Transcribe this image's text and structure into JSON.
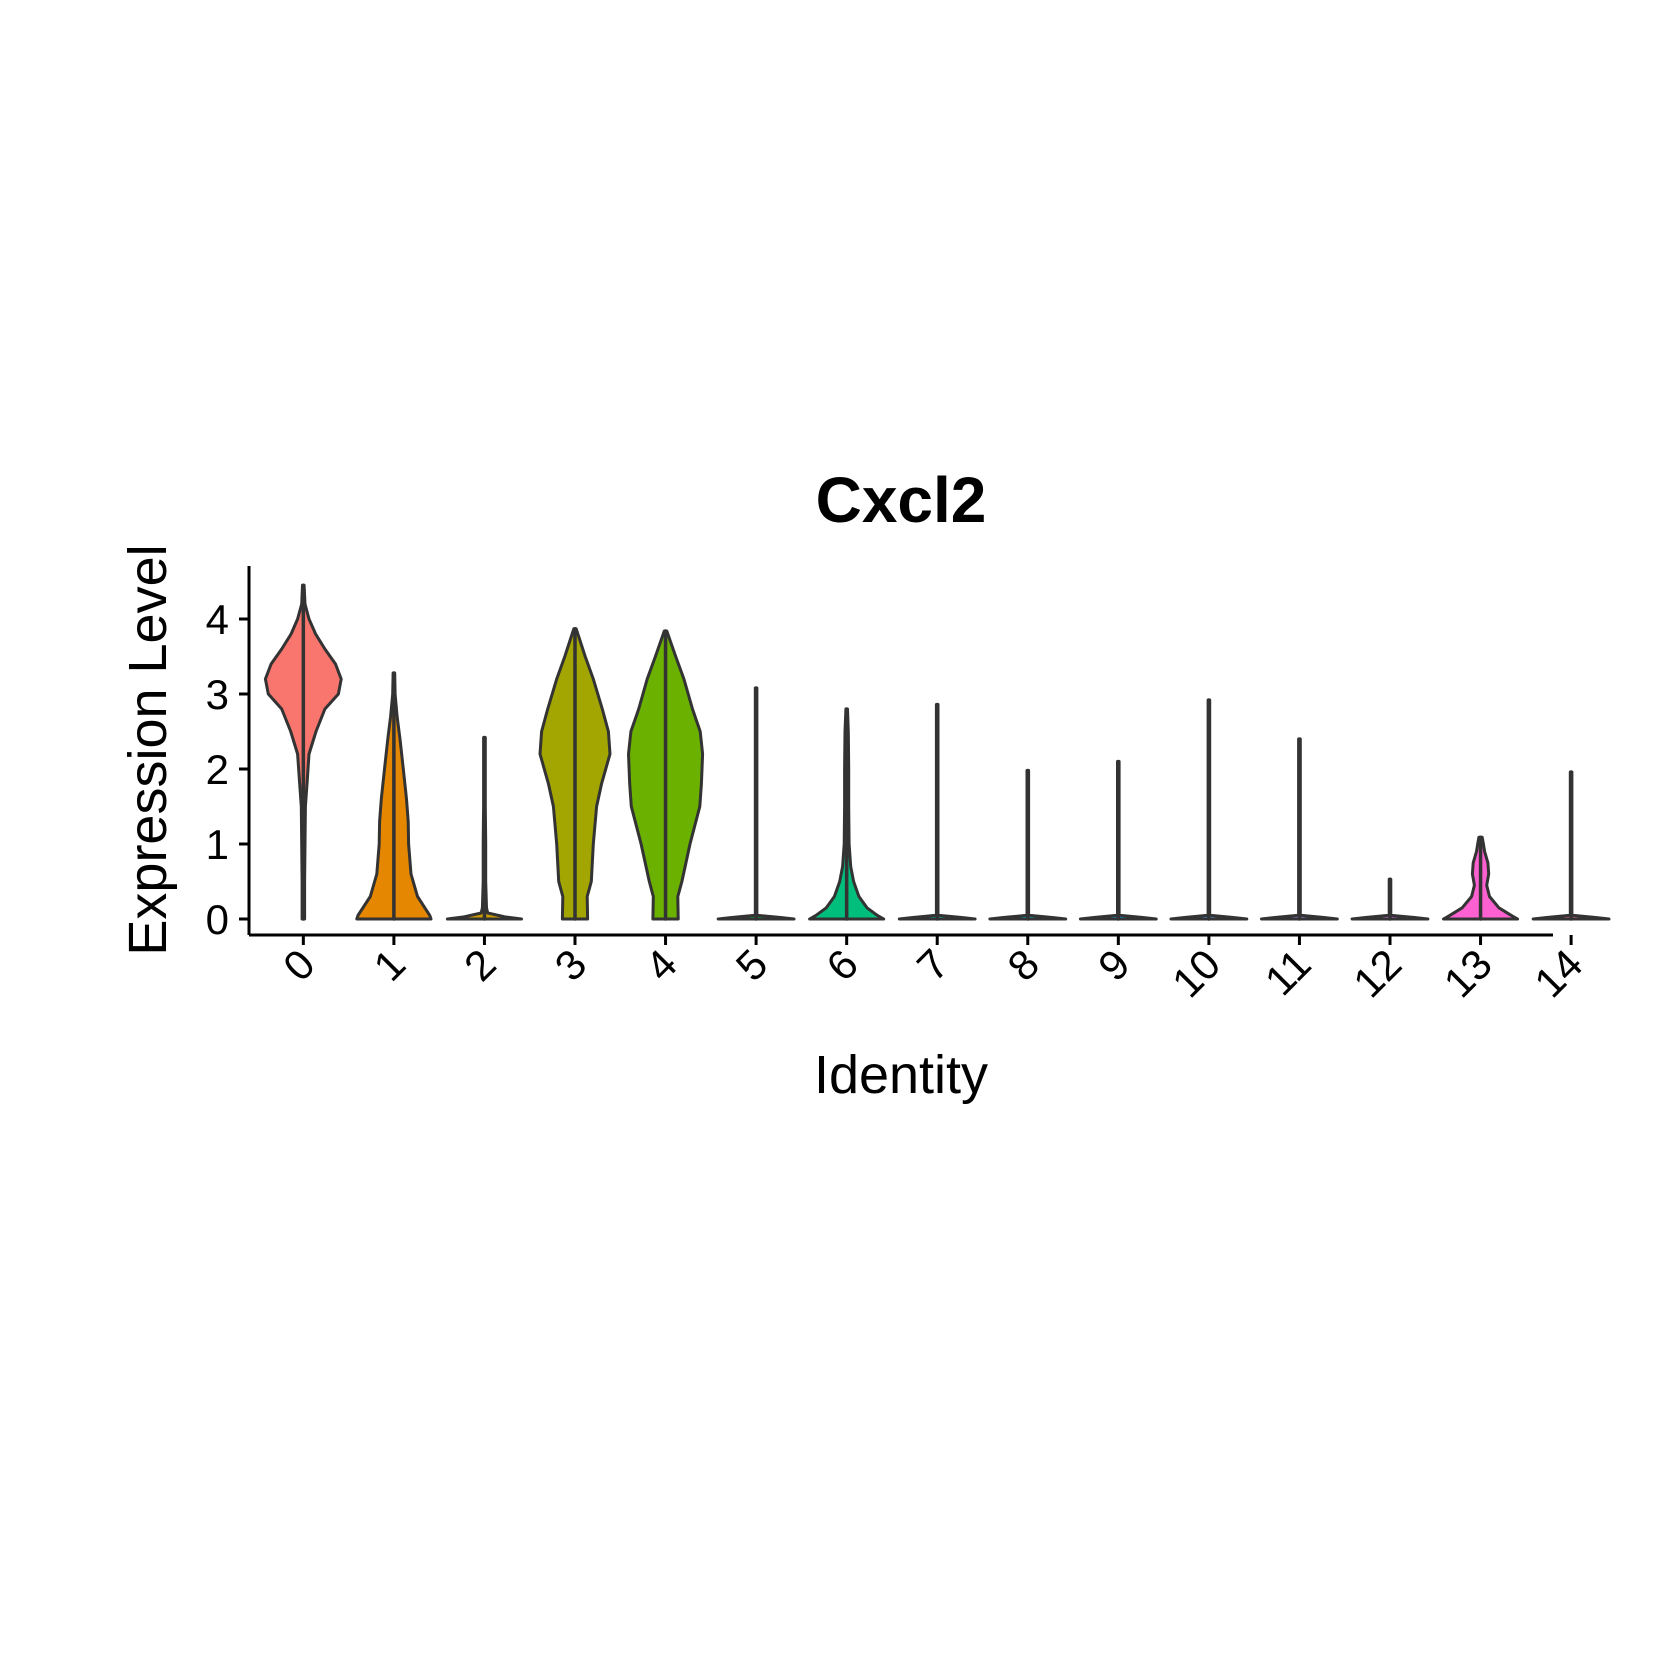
{
  "chart_data": {
    "type": "violin",
    "title": "Cxcl2",
    "xlabel": "Identity",
    "ylabel": "Expression Level",
    "ylim": [
      -0.23,
      4.7
    ],
    "yticks": [
      0,
      1,
      2,
      3,
      4
    ],
    "categories": [
      "0",
      "1",
      "2",
      "3",
      "4",
      "5",
      "6",
      "7",
      "8",
      "9",
      "10",
      "11",
      "12",
      "13",
      "14"
    ],
    "colors": [
      "#F8766D",
      "#E58700",
      "#C99800",
      "#A3A500",
      "#6BB100",
      "#00BA38",
      "#00BF7D",
      "#00C0AF",
      "#00BCD8",
      "#00B0F6",
      "#619CFF",
      "#B983FF",
      "#E76BF3",
      "#FD61D1",
      "#FF67A4"
    ],
    "max_values": [
      4.45,
      3.28,
      2.42,
      3.87,
      3.84,
      3.08,
      2.8,
      2.86,
      1.98,
      2.1,
      2.92,
      2.4,
      0.53,
      1.09,
      1.96
    ],
    "violins": [
      {
        "y": [
          0,
          0.5,
          1,
          1.5,
          1.8,
          2.2,
          2.5,
          2.8,
          3.0,
          3.2,
          3.4,
          3.6,
          3.8,
          4.0,
          4.2,
          4.45
        ],
        "w": [
          0.03,
          0.03,
          0.04,
          0.05,
          0.09,
          0.14,
          0.31,
          0.53,
          0.86,
          0.93,
          0.79,
          0.53,
          0.3,
          0.14,
          0.04,
          0.02
        ]
      },
      {
        "y": [
          0,
          0.05,
          0.3,
          0.6,
          1.0,
          1.3,
          1.6,
          2.0,
          2.4,
          2.7,
          3.0,
          3.28
        ],
        "w": [
          0.91,
          0.88,
          0.58,
          0.42,
          0.36,
          0.35,
          0.31,
          0.23,
          0.15,
          0.08,
          0.03,
          0.02
        ]
      },
      {
        "y": [
          0,
          0.03,
          0.08,
          0.15,
          0.5,
          1.0,
          1.5,
          2.0,
          2.42
        ],
        "w": [
          0.91,
          0.5,
          0.08,
          0.05,
          0.03,
          0.03,
          0.02,
          0.02,
          0.02
        ]
      },
      {
        "y": [
          0,
          0.3,
          0.5,
          1.0,
          1.5,
          1.8,
          2.2,
          2.5,
          2.8,
          3.2,
          3.5,
          3.87
        ],
        "w": [
          0.31,
          0.3,
          0.4,
          0.45,
          0.53,
          0.65,
          0.86,
          0.82,
          0.67,
          0.45,
          0.25,
          0.03
        ]
      },
      {
        "y": [
          0,
          0.3,
          0.5,
          1.0,
          1.5,
          1.8,
          2.2,
          2.5,
          2.8,
          3.2,
          3.5,
          3.84
        ],
        "w": [
          0.31,
          0.3,
          0.4,
          0.6,
          0.84,
          0.88,
          0.91,
          0.85,
          0.66,
          0.45,
          0.25,
          0.03
        ]
      },
      {
        "y": [
          0,
          0.02,
          0.05,
          3.08
        ],
        "w": [
          0.93,
          0.6,
          0.02,
          0.02
        ]
      },
      {
        "y": [
          0,
          0.05,
          0.15,
          0.3,
          0.5,
          0.7,
          1.0,
          1.5,
          2.0,
          2.5,
          2.8
        ],
        "w": [
          0.91,
          0.75,
          0.5,
          0.3,
          0.17,
          0.1,
          0.06,
          0.05,
          0.05,
          0.04,
          0.02
        ]
      },
      {
        "y": [
          0,
          0.02,
          0.05,
          2.86
        ],
        "w": [
          0.93,
          0.6,
          0.02,
          0.02
        ]
      },
      {
        "y": [
          0,
          0.02,
          0.05,
          1.98
        ],
        "w": [
          0.93,
          0.6,
          0.02,
          0.02
        ]
      },
      {
        "y": [
          0,
          0.02,
          0.05,
          2.1
        ],
        "w": [
          0.93,
          0.6,
          0.02,
          0.02
        ]
      },
      {
        "y": [
          0,
          0.02,
          0.05,
          2.92
        ],
        "w": [
          0.93,
          0.6,
          0.02,
          0.02
        ]
      },
      {
        "y": [
          0,
          0.02,
          0.05,
          2.4
        ],
        "w": [
          0.93,
          0.6,
          0.02,
          0.02
        ]
      },
      {
        "y": [
          0,
          0.02,
          0.05,
          0.53
        ],
        "w": [
          0.93,
          0.6,
          0.02,
          0.02
        ]
      },
      {
        "y": [
          0,
          0.05,
          0.15,
          0.3,
          0.45,
          0.6,
          0.75,
          0.9,
          1.0,
          1.09
        ],
        "w": [
          0.91,
          0.75,
          0.45,
          0.22,
          0.15,
          0.2,
          0.18,
          0.1,
          0.07,
          0.04
        ]
      },
      {
        "y": [
          0,
          0.02,
          0.05,
          1.96
        ],
        "w": [
          0.93,
          0.6,
          0.02,
          0.02
        ]
      }
    ],
    "grid": false,
    "legend": "none"
  }
}
